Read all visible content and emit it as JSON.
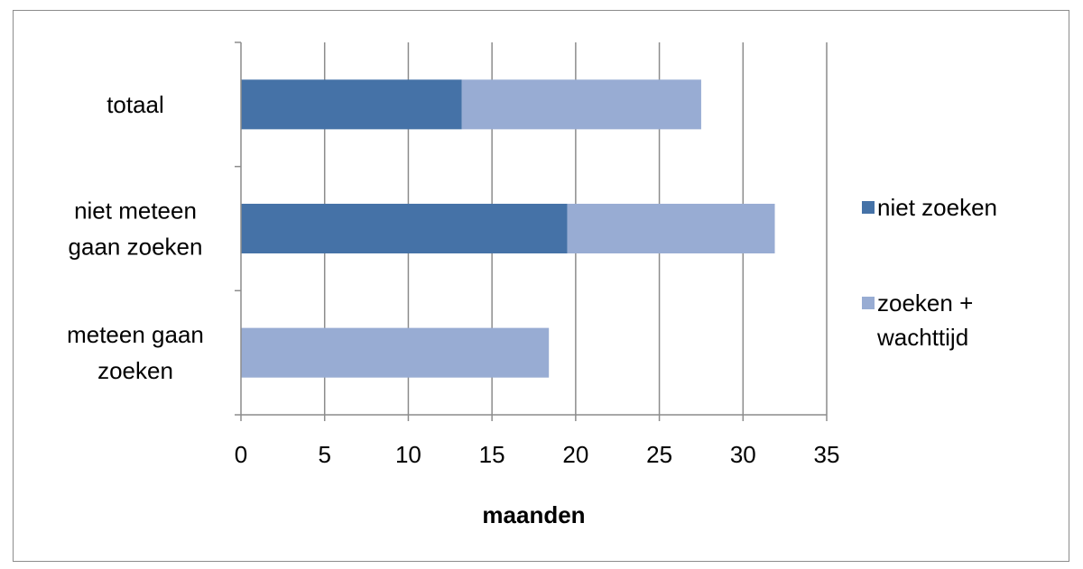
{
  "chart_data": {
    "type": "bar",
    "orientation": "horizontal",
    "stacked": true,
    "categories": [
      "meteen gaan zoeken",
      "niet meteen gaan zoeken",
      "totaal"
    ],
    "category_label_lines": [
      [
        "meteen gaan",
        "zoeken"
      ],
      [
        "niet meteen",
        "gaan zoeken"
      ],
      [
        "totaal"
      ]
    ],
    "series": [
      {
        "name": "niet zoeken",
        "color": "#4572a7",
        "values": [
          0,
          19.5,
          13.2
        ]
      },
      {
        "name": "zoeken + wachttijd",
        "color": "#98acd3",
        "values": [
          18.4,
          12.4,
          14.3
        ]
      }
    ],
    "legend_label_lines": [
      [
        "niet zoeken"
      ],
      [
        "zoeken +",
        "wachttijd"
      ]
    ],
    "xlabel": "maanden",
    "ylabel": "",
    "xlim": [
      0,
      35
    ],
    "xticks": [
      0,
      5,
      10,
      15,
      20,
      25,
      30,
      35
    ],
    "grid": "vertical",
    "legend_position": "right"
  }
}
